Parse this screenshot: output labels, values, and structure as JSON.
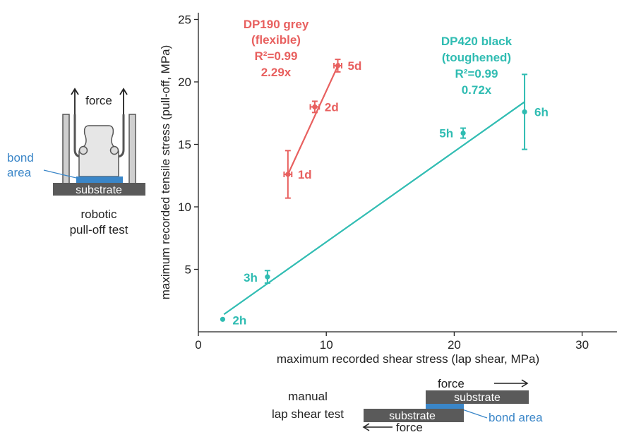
{
  "chart_data": {
    "type": "scatter",
    "xlabel": "maximum recorded shear stress (lap shear, MPa)",
    "ylabel": "maximum recorded tensile stress (pull-off, MPa)",
    "xlim": [
      0,
      33
    ],
    "ylim": [
      0,
      25.5
    ],
    "x_ticks": [
      "0",
      "10",
      "20",
      "30"
    ],
    "y_ticks": [
      "5",
      "10",
      "15",
      "20",
      "25"
    ],
    "grid": false,
    "series": [
      {
        "name": "DP190 grey (flexible)",
        "color": "#e8605f",
        "label_lines": [
          "DP190 grey",
          "(flexible)",
          "R²=0.99",
          "2.29x"
        ],
        "points": [
          {
            "label": "1d",
            "x": 7.0,
            "y": 12.6,
            "x_err": 0.3,
            "y_err": 1.9
          },
          {
            "label": "2d",
            "x": 9.1,
            "y": 18.0,
            "x_err": 0.35,
            "y_err": 0.45
          },
          {
            "label": "5d",
            "x": 10.9,
            "y": 21.3,
            "x_err": 0.3,
            "y_err": 0.5
          }
        ],
        "fit": {
          "x": [
            7.0,
            11.0
          ],
          "y": [
            12.6,
            21.5
          ]
        }
      },
      {
        "name": "DP420 black (toughened)",
        "color": "#2fbcb2",
        "label_lines": [
          "DP420 black",
          "(toughened)",
          "R²=0.99",
          "0.72x"
        ],
        "points": [
          {
            "label": "2h",
            "x": 1.9,
            "y": 1.0,
            "x_err": 0,
            "y_err": 0
          },
          {
            "label": "3h",
            "x": 5.4,
            "y": 4.4,
            "x_err": 0,
            "y_err": 0.5
          },
          {
            "label": "5h",
            "x": 20.7,
            "y": 15.9,
            "x_err": 0,
            "y_err": 0.4
          },
          {
            "label": "6h",
            "x": 25.5,
            "y": 17.6,
            "x_err": 0,
            "y_err": 3.0
          }
        ],
        "fit": {
          "x": [
            2.0,
            25.5
          ],
          "y": [
            1.4,
            18.4
          ]
        }
      }
    ]
  },
  "annotations": {
    "pulloff_force": "force",
    "pulloff_bond_area_1": "bond",
    "pulloff_bond_area_2": "area",
    "pulloff_substrate": "substrate",
    "pulloff_caption_1": "robotic",
    "pulloff_caption_2": "pull-off test",
    "lap_caption_1": "manual",
    "lap_caption_2": "lap shear test",
    "lap_force_top": "force",
    "lap_force_bottom": "force",
    "lap_substrate_top": "substrate",
    "lap_substrate_bottom": "substrate",
    "lap_bond_area": "bond area"
  },
  "colors": {
    "dp190": "#e8605f",
    "dp420": "#2fbcb2",
    "bond": "#3a86c8",
    "substrate": "#5a5a5a",
    "fixture": "#999999"
  }
}
